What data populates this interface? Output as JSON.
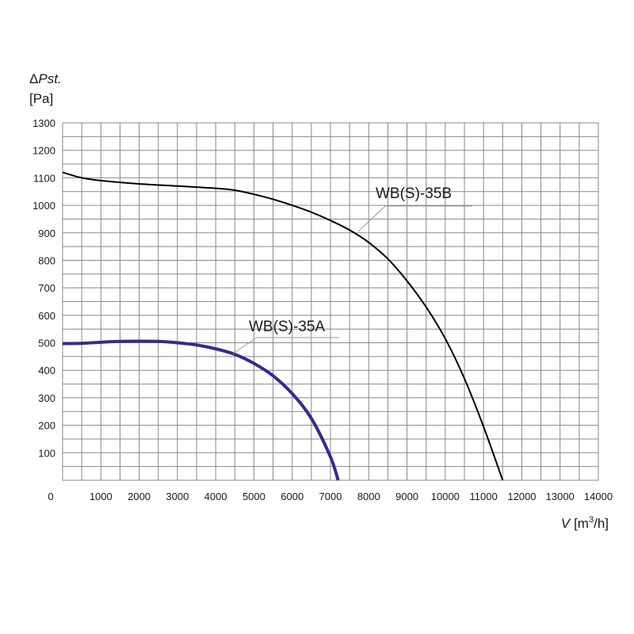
{
  "chart_data": {
    "type": "line",
    "ylabel_symbol": "Δ",
    "ylabel_var": "Pst.",
    "ylabel_unit": "[Pa]",
    "xlabel_var": "V",
    "xlabel_unit_pre": "[m",
    "xlabel_unit_sup": "3",
    "xlabel_unit_post": "/h]",
    "origin_label": "0",
    "xlim": [
      0,
      14000
    ],
    "ylim": [
      0,
      1300
    ],
    "x_ticks": [
      1000,
      2000,
      3000,
      4000,
      5000,
      6000,
      7000,
      8000,
      9000,
      10000,
      11000,
      12000,
      13000,
      14000
    ],
    "y_ticks": [
      100,
      200,
      300,
      400,
      500,
      600,
      700,
      800,
      900,
      1000,
      1100,
      1200,
      1300
    ],
    "grid": true,
    "series": [
      {
        "name": "WB(S)-35B",
        "color": "#000000",
        "x": [
          0,
          500,
          1000,
          2000,
          3000,
          4000,
          4500,
          5000,
          5500,
          6000,
          6500,
          7000,
          7500,
          8000,
          8500,
          9000,
          9500,
          10000,
          10500,
          11000,
          11500
        ],
        "y": [
          1120,
          1100,
          1090,
          1078,
          1070,
          1062,
          1055,
          1040,
          1022,
          1000,
          975,
          945,
          910,
          865,
          805,
          725,
          630,
          515,
          370,
          195,
          0
        ]
      },
      {
        "name": "WB(S)-35A",
        "color": "#332c8c",
        "x": [
          0,
          500,
          1000,
          1500,
          2000,
          2500,
          3000,
          3500,
          4000,
          4500,
          5000,
          5500,
          6000,
          6500,
          7000,
          7200
        ],
        "y": [
          497,
          498,
          502,
          505,
          506,
          505,
          500,
          492,
          478,
          458,
          425,
          380,
          315,
          225,
          85,
          0
        ]
      }
    ]
  }
}
